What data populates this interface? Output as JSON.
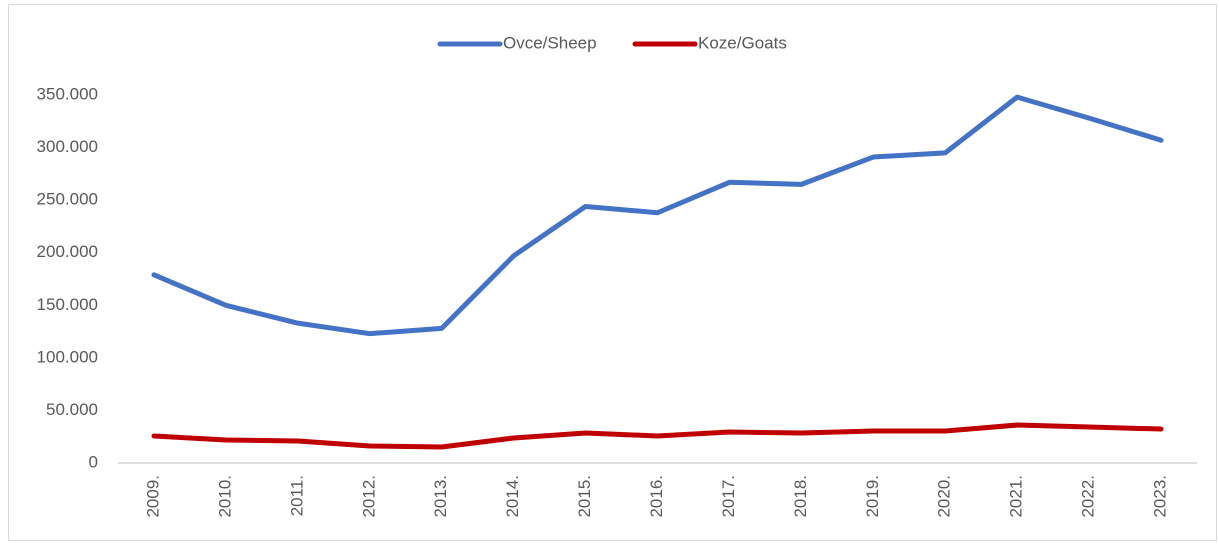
{
  "chart_data": {
    "type": "line",
    "categories": [
      "2009.",
      "2010.",
      "2011.",
      "2012.",
      "2013.",
      "2014.",
      "2015.",
      "2016.",
      "2017.",
      "2018.",
      "2019.",
      "2020.",
      "2021.",
      "2022.",
      "2023."
    ],
    "series": [
      {
        "name": "Ovce/Sheep",
        "color": "#4472c4",
        "values": [
          179000,
          150000,
          133000,
          123000,
          128000,
          197000,
          244000,
          238000,
          267000,
          265000,
          291000,
          295000,
          348000,
          328000,
          307000
        ]
      },
      {
        "name": "Koze/Goats",
        "color": "#c00000",
        "values": [
          25700,
          21900,
          20900,
          16200,
          15200,
          23800,
          28500,
          25700,
          29500,
          28500,
          30400,
          30400,
          36100,
          34200,
          32300
        ]
      }
    ],
    "ylim": [
      0,
      350000
    ],
    "yticks": [
      0,
      {
        "value": 50000,
        "label": "50.000"
      },
      {
        "value": 100000,
        "label": "100.000"
      },
      {
        "value": 150000,
        "label": "150.000"
      },
      {
        "value": 200000,
        "label": "200.000"
      },
      {
        "value": 250000,
        "label": "250.000"
      },
      {
        "value": 300000,
        "label": "300.000"
      },
      {
        "value": 350000,
        "label": "350.000"
      }
    ],
    "legend": "top",
    "grid": false
  }
}
